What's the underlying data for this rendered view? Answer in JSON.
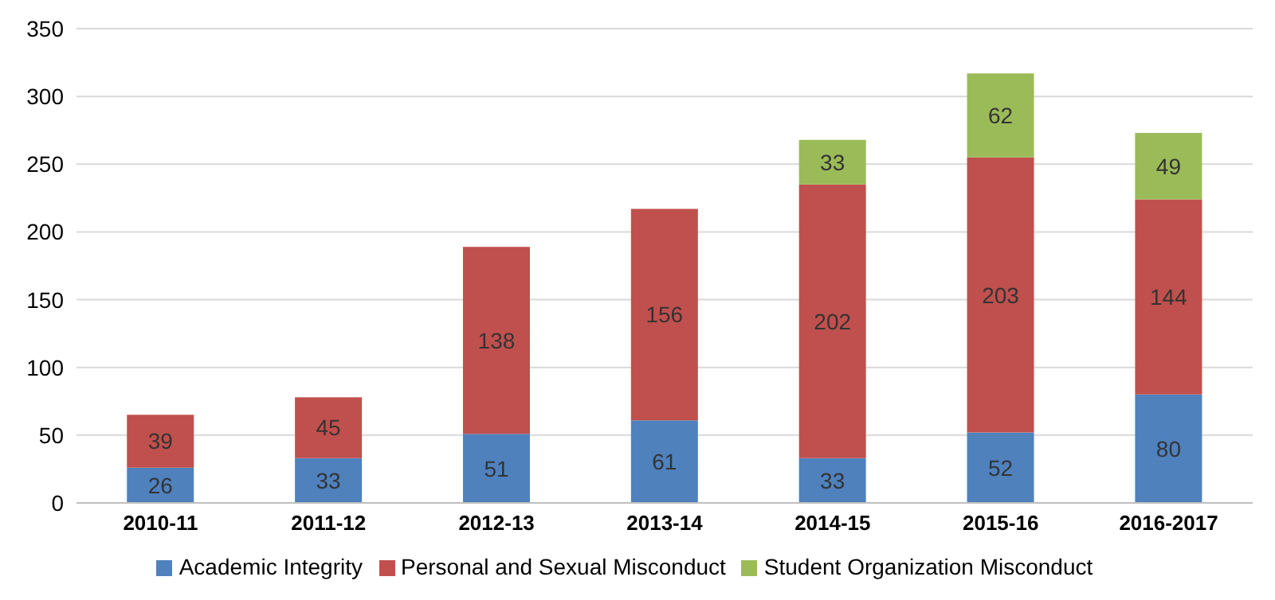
{
  "chart_data": {
    "type": "bar",
    "stacked": true,
    "categories": [
      "2010-11",
      "2011-12",
      "2012-13",
      "2013-14",
      "2014-15",
      "2015-16",
      "2016-2017"
    ],
    "series": [
      {
        "name": "Academic Integrity",
        "color": "#4f81bd",
        "values": [
          26,
          33,
          51,
          61,
          33,
          52,
          80
        ]
      },
      {
        "name": "Personal and Sexual Misconduct",
        "color": "#c0504d",
        "values": [
          39,
          45,
          138,
          156,
          202,
          203,
          144
        ]
      },
      {
        "name": "Student Organization Misconduct",
        "color": "#9bbb59",
        "values": [
          null,
          null,
          null,
          null,
          33,
          62,
          49
        ]
      }
    ],
    "ylim": [
      0,
      350
    ],
    "yticks": [
      0,
      50,
      100,
      150,
      200,
      250,
      300,
      350
    ],
    "grid": "y",
    "legend": "bottom",
    "data_labels": true
  }
}
